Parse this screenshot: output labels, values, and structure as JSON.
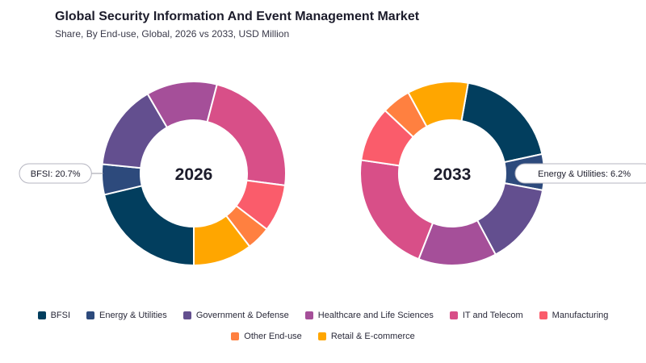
{
  "title": "Global Security Information And Event Management Market",
  "subtitle": "Share, By End-use, Global, 2026 vs 2033, USD Million",
  "chart_data": {
    "type": "donut",
    "categories": [
      "BFSI",
      "Energy & Utilities",
      "Government & Defense",
      "Healthcare and Life Sciences",
      "IT and Telecom",
      "Manufacturing",
      "Other End-use",
      "Retail & E-commerce"
    ],
    "colors": [
      "#023e5e",
      "#2d4a7c",
      "#634f8f",
      "#a54f99",
      "#d84f88",
      "#fa5c6b",
      "#ff8040",
      "#ffa600"
    ],
    "series": [
      {
        "name": "2026",
        "values": [
          20.7,
          5.2,
          14.6,
          12.1,
          22.4,
          8.1,
          4.1,
          10.1
        ],
        "callout": "BFSI: 20.7%"
      },
      {
        "name": "2033",
        "values": [
          18.5,
          6.2,
          14.0,
          13.5,
          21.0,
          9.5,
          5.0,
          10.5
        ],
        "callout": "Energy & Utilities: 6.2%"
      }
    ]
  }
}
